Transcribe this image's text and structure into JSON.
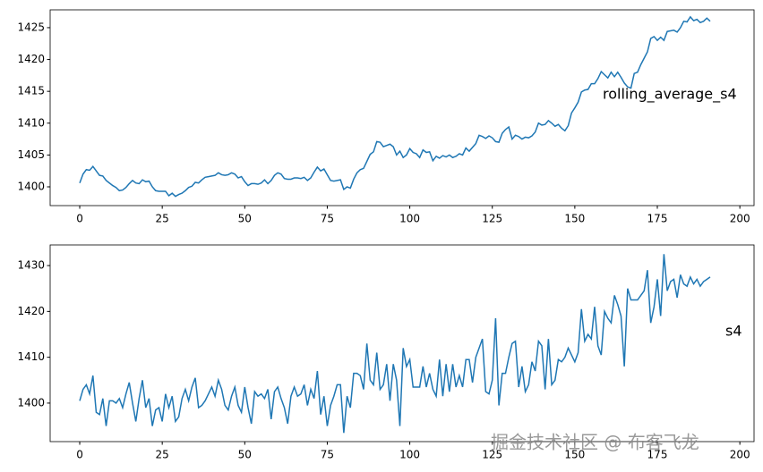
{
  "chart_data": [
    {
      "type": "line",
      "annotation": "rolling_average_s4",
      "color": "#1f77b4",
      "xlim": [
        -8.96,
        204.3
      ],
      "ylim": [
        1397.05,
        1427.8
      ],
      "xticks": [
        0,
        25,
        50,
        75,
        100,
        125,
        150,
        175,
        200
      ],
      "yticks": [
        1400,
        1405,
        1410,
        1415,
        1420,
        1425
      ],
      "x": [
        0,
        1,
        2,
        3,
        4,
        5,
        6,
        7,
        8,
        9,
        10,
        11,
        12,
        13,
        14,
        15,
        16,
        17,
        18,
        19,
        20,
        21,
        22,
        23,
        24,
        25,
        26,
        27,
        28,
        29,
        30,
        31,
        32,
        33,
        34,
        35,
        36,
        37,
        38,
        39,
        40,
        41,
        42,
        43,
        44,
        45,
        46,
        47,
        48,
        49,
        50,
        51,
        52,
        53,
        54,
        55,
        56,
        57,
        58,
        59,
        60,
        61,
        62,
        63,
        64,
        65,
        66,
        67,
        68,
        69,
        70,
        71,
        72,
        73,
        74,
        75,
        76,
        77,
        78,
        79,
        80,
        81,
        82,
        83,
        84,
        85,
        86,
        87,
        88,
        89,
        90,
        91,
        92,
        93,
        94,
        95,
        96,
        97,
        98,
        99,
        100,
        101,
        102,
        103,
        104,
        105,
        106,
        107,
        108,
        109,
        110,
        111,
        112,
        113,
        114,
        115,
        116,
        117,
        118,
        119,
        120,
        121,
        122,
        123,
        124,
        125,
        126,
        127,
        128,
        129,
        130,
        131,
        132,
        133,
        134,
        135,
        136,
        137,
        138,
        139,
        140,
        141,
        142,
        143,
        144,
        145,
        146,
        147,
        148,
        149,
        150,
        151,
        152,
        153,
        154,
        155,
        156,
        157,
        158,
        159,
        160,
        161,
        162,
        163,
        164,
        165,
        166,
        167,
        168,
        169,
        170,
        171,
        172,
        173,
        174,
        175,
        176,
        177,
        178,
        179,
        180,
        181,
        182,
        183,
        184,
        185,
        186,
        187,
        188,
        189,
        190,
        191
      ],
      "values": [
        1400.6,
        1402,
        1402.7,
        1402.6,
        1403.2,
        1402.5,
        1401.8,
        1401.7,
        1401.0,
        1400.6,
        1400.2,
        1399.9,
        1399.4,
        1399.5,
        1399.9,
        1400.5,
        1401.0,
        1400.6,
        1400.5,
        1401.1,
        1400.8,
        1400.9,
        1400.0,
        1399.4,
        1399.3,
        1399.3,
        1399.3,
        1398.6,
        1399.0,
        1398.5,
        1398.8,
        1399.0,
        1399.4,
        1399.9,
        1400.1,
        1400.7,
        1400.6,
        1401.1,
        1401.5,
        1401.6,
        1401.7,
        1401.8,
        1402.2,
        1401.9,
        1401.8,
        1401.9,
        1402.2,
        1402.0,
        1401.4,
        1401.6,
        1400.8,
        1400.2,
        1400.5,
        1400.5,
        1400.4,
        1400.6,
        1401.1,
        1400.5,
        1401.0,
        1401.8,
        1402.2,
        1402.0,
        1401.3,
        1401.2,
        1401.2,
        1401.4,
        1401.4,
        1401.3,
        1401.5,
        1401.0,
        1401.4,
        1402.3,
        1403.1,
        1402.5,
        1402.8,
        1401.9,
        1401.0,
        1400.9,
        1401.0,
        1401.1,
        1399.6,
        1400.0,
        1399.8,
        1401.2,
        1402.2,
        1402.7,
        1402.9,
        1404.0,
        1405.1,
        1405.5,
        1407.1,
        1407.0,
        1406.3,
        1406.5,
        1406.7,
        1406.3,
        1405.0,
        1405.6,
        1404.6,
        1405.0,
        1406.0,
        1405.4,
        1405.2,
        1404.6,
        1405.8,
        1405.4,
        1405.5,
        1404.1,
        1404.8,
        1404.5,
        1404.9,
        1404.7,
        1405.0,
        1404.6,
        1404.8,
        1405.2,
        1405.0,
        1406.1,
        1405.6,
        1406.2,
        1406.8,
        1408.1,
        1407.9,
        1407.6,
        1408.0,
        1407.7,
        1407.1,
        1407.0,
        1408.4,
        1409.0,
        1409.4,
        1407.5,
        1408.1,
        1407.9,
        1407.5,
        1407.8,
        1407.7,
        1408.0,
        1408.6,
        1410.0,
        1409.7,
        1409.8,
        1410.4,
        1410.0,
        1409.5,
        1409.8,
        1409.2,
        1408.8,
        1409.6,
        1411.6,
        1412.4,
        1413.3,
        1414.9,
        1415.2,
        1415.3,
        1416.2,
        1416.2,
        1417.0,
        1418.1,
        1417.6,
        1417.1,
        1418.0,
        1417.3,
        1418.0,
        1417.2,
        1416.3,
        1415.7,
        1415.5,
        1417.8,
        1418.0,
        1419.2,
        1420.2,
        1421.2,
        1423.3,
        1423.6,
        1423.0,
        1423.5,
        1423.0,
        1424.4,
        1424.5,
        1424.6,
        1424.3,
        1425.0,
        1426.0,
        1425.9,
        1426.7,
        1426.1,
        1426.3,
        1425.8,
        1426.0,
        1426.5,
        1426.0
      ]
    },
    {
      "type": "line",
      "annotation": "s4",
      "color": "#1f77b4",
      "xlim": [
        -8.96,
        204.3
      ],
      "ylim": [
        1391.6,
        1434.5
      ],
      "xticks": [
        0,
        25,
        50,
        75,
        100,
        125,
        150,
        175,
        200
      ],
      "yticks": [
        1400,
        1410,
        1420,
        1430
      ],
      "x": [
        0,
        1,
        2,
        3,
        4,
        5,
        6,
        7,
        8,
        9,
        10,
        11,
        12,
        13,
        14,
        15,
        16,
        17,
        18,
        19,
        20,
        21,
        22,
        23,
        24,
        25,
        26,
        27,
        28,
        29,
        30,
        31,
        32,
        33,
        34,
        35,
        36,
        37,
        38,
        39,
        40,
        41,
        42,
        43,
        44,
        45,
        46,
        47,
        48,
        49,
        50,
        51,
        52,
        53,
        54,
        55,
        56,
        57,
        58,
        59,
        60,
        61,
        62,
        63,
        64,
        65,
        66,
        67,
        68,
        69,
        70,
        71,
        72,
        73,
        74,
        75,
        76,
        77,
        78,
        79,
        80,
        81,
        82,
        83,
        84,
        85,
        86,
        87,
        88,
        89,
        90,
        91,
        92,
        93,
        94,
        95,
        96,
        97,
        98,
        99,
        100,
        101,
        102,
        103,
        104,
        105,
        106,
        107,
        108,
        109,
        110,
        111,
        112,
        113,
        114,
        115,
        116,
        117,
        118,
        119,
        120,
        121,
        122,
        123,
        124,
        125,
        126,
        127,
        128,
        129,
        130,
        131,
        132,
        133,
        134,
        135,
        136,
        137,
        138,
        139,
        140,
        141,
        142,
        143,
        144,
        145,
        146,
        147,
        148,
        149,
        150,
        151,
        152,
        153,
        154,
        155,
        156,
        157,
        158,
        159,
        160,
        161,
        162,
        163,
        164,
        165,
        166,
        167,
        168,
        169,
        170,
        171,
        172,
        173,
        174,
        175,
        176,
        177,
        178,
        179,
        180,
        181,
        182,
        183,
        184,
        185,
        186,
        187,
        188,
        189,
        190,
        191
      ],
      "values": [
        1400.5,
        1403,
        1404,
        1402,
        1406,
        1398,
        1397.5,
        1401,
        1395,
        1400.5,
        1400.5,
        1400,
        1401,
        1399,
        1402,
        1404.5,
        1400,
        1396,
        1401,
        1405,
        1399,
        1401,
        1395,
        1398.5,
        1399,
        1396,
        1402,
        1399,
        1401.5,
        1396,
        1397,
        1401,
        1403,
        1400.5,
        1403.5,
        1405.5,
        1399,
        1399.5,
        1400.5,
        1402,
        1403.5,
        1401.5,
        1405,
        1403,
        1399.5,
        1398.5,
        1401.5,
        1403.5,
        1399.5,
        1398,
        1403.5,
        1399,
        1395.5,
        1402.5,
        1401.5,
        1402,
        1401,
        1403,
        1396.5,
        1402.5,
        1403.5,
        1401,
        1399,
        1395.5,
        1401.5,
        1403.5,
        1401.5,
        1402,
        1404,
        1399.5,
        1403,
        1401,
        1407,
        1397.5,
        1401.5,
        1395,
        1399.5,
        1401.5,
        1404,
        1404,
        1393.5,
        1401.5,
        1399,
        1406.5,
        1406.5,
        1406,
        1403,
        1413,
        1405,
        1404,
        1411,
        1403,
        1404,
        1408.5,
        1400.5,
        1408.5,
        1405,
        1395,
        1412,
        1408,
        1409.5,
        1403.5,
        1403.5,
        1403.5,
        1408,
        1403.5,
        1406.5,
        1403,
        1401.5,
        1409.5,
        1401.5,
        1408.5,
        1402.5,
        1408.5,
        1403.5,
        1406,
        1403.5,
        1409.5,
        1409.5,
        1404.5,
        1410,
        1412,
        1414,
        1402.5,
        1402,
        1405,
        1418.5,
        1399.5,
        1406.5,
        1406.5,
        1410,
        1413,
        1413.5,
        1403.5,
        1408,
        1402.5,
        1404,
        1409,
        1407,
        1413.5,
        1412.5,
        1403,
        1414,
        1404,
        1405,
        1409.5,
        1409,
        1410,
        1412,
        1410.5,
        1409,
        1411,
        1420.5,
        1413.5,
        1415,
        1414,
        1421,
        1412.5,
        1410.5,
        1420,
        1418.5,
        1417.5,
        1423.5,
        1421.5,
        1419,
        1408,
        1425,
        1422.5,
        1422.5,
        1422.5,
        1423.5,
        1424.5,
        1429,
        1417.5,
        1421,
        1427,
        1419,
        1432.5,
        1424.5,
        1426.5,
        1427,
        1423,
        1428,
        1426,
        1425.5,
        1427.5,
        1426,
        1427,
        1425.5,
        1426.5,
        1427,
        1427.5
      ]
    }
  ],
  "watermark": "掘金技术社区 @ 布客飞龙"
}
